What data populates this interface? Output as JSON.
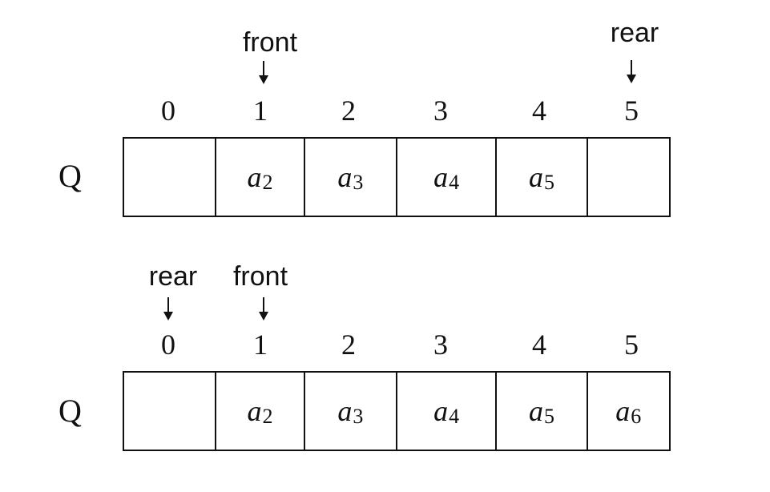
{
  "diagrams": [
    {
      "queue_label": "Q",
      "indices": [
        "0",
        "1",
        "2",
        "3",
        "4",
        "5"
      ],
      "cells": [
        {
          "var": "",
          "sub": ""
        },
        {
          "var": "a",
          "sub": "2"
        },
        {
          "var": "a",
          "sub": "3"
        },
        {
          "var": "a",
          "sub": "4"
        },
        {
          "var": "a",
          "sub": "5"
        },
        {
          "var": "",
          "sub": ""
        }
      ],
      "pointers": [
        {
          "label": "front",
          "index": 1
        },
        {
          "label": "rear",
          "index": 5
        }
      ]
    },
    {
      "queue_label": "Q",
      "indices": [
        "0",
        "1",
        "2",
        "3",
        "4",
        "5"
      ],
      "cells": [
        {
          "var": "",
          "sub": ""
        },
        {
          "var": "a",
          "sub": "2"
        },
        {
          "var": "a",
          "sub": "3"
        },
        {
          "var": "a",
          "sub": "4"
        },
        {
          "var": "a",
          "sub": "5"
        },
        {
          "var": "a",
          "sub": "6"
        }
      ],
      "pointers": [
        {
          "label": "rear",
          "index": 0
        },
        {
          "label": "front",
          "index": 1
        }
      ]
    }
  ]
}
